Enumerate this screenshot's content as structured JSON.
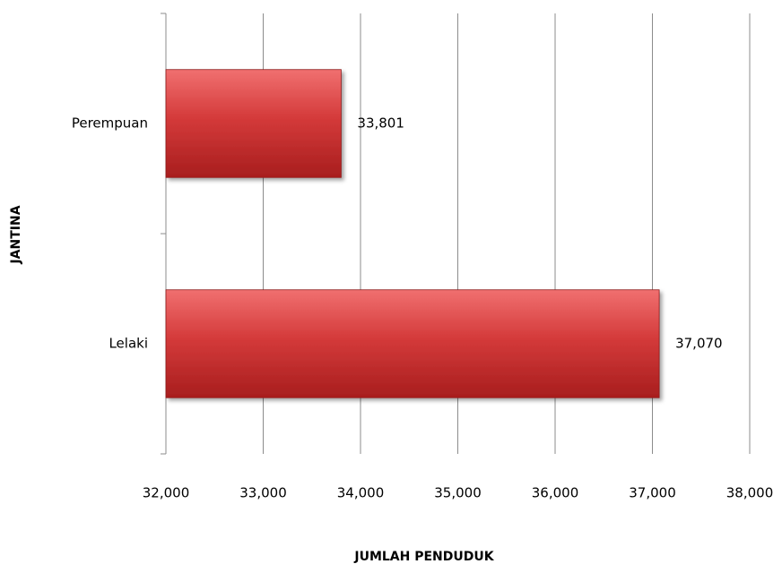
{
  "chart_data": {
    "type": "barh",
    "categories": [
      "Perempuan",
      "Lelaki"
    ],
    "values": [
      33801,
      37070
    ],
    "value_labels": [
      "33,801",
      "37,070"
    ],
    "color": "#d43a3a",
    "xlim": [
      32000,
      38000
    ],
    "xticks": [
      {
        "value": 32000,
        "label": "32,000"
      },
      {
        "value": 33000,
        "label": "33,000"
      },
      {
        "value": 34000,
        "label": "34,000"
      },
      {
        "value": 35000,
        "label": "35,000"
      },
      {
        "value": 36000,
        "label": "36,000"
      },
      {
        "value": 37000,
        "label": "37,000"
      },
      {
        "value": 38000,
        "label": "38,000"
      }
    ],
    "xlabel": "JUMLAH PENDUDUK",
    "ylabel": "JANTINA",
    "grid": true
  }
}
